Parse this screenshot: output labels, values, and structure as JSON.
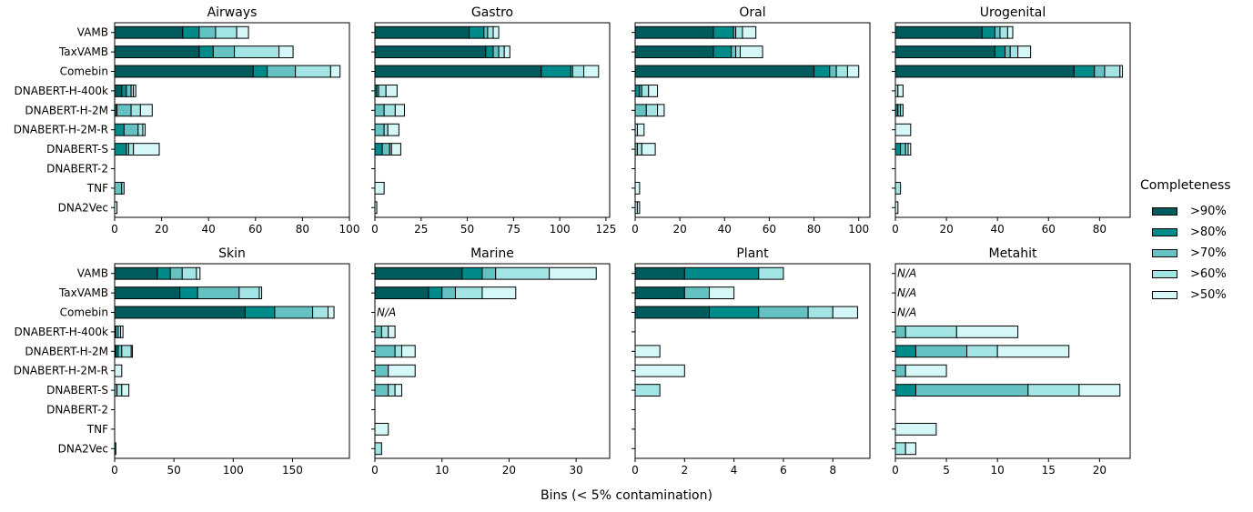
{
  "chart_data": {
    "type": "bar",
    "orientation": "horizontal",
    "stacked": true,
    "xlabel": "Bins (< 5% contamination)",
    "legend": {
      "title": "Completeness",
      "placement": "right",
      "entries": [
        ">90%",
        ">80%",
        ">70%",
        ">60%",
        ">50%"
      ],
      "colors": [
        "#005c5c",
        "#008b8b",
        "#66c2c2",
        "#a3e4e4",
        "#d6f7f7"
      ]
    },
    "categories": [
      "VAMB",
      "TaxVAMB",
      "Comebin",
      "DNABERT-H-400k",
      "DNABERT-H-2M",
      "DNABERT-H-2M-R",
      "DNABERT-S",
      "DNABERT-2",
      "TNF",
      "DNA2Vec"
    ],
    "panels": [
      {
        "title": "Airways",
        "xlim": [
          0,
          100
        ],
        "xticks": [
          0,
          20,
          40,
          60,
          80,
          100
        ],
        "na": [],
        "stacks": [
          [
            29,
            7,
            7,
            9,
            5
          ],
          [
            36,
            6,
            9,
            19,
            6
          ],
          [
            59,
            6,
            12,
            15,
            4
          ],
          [
            3,
            2,
            2,
            1,
            1
          ],
          [
            1,
            0,
            6,
            4,
            5
          ],
          [
            0,
            4,
            6,
            2,
            1
          ],
          [
            0,
            5,
            1,
            2,
            11
          ],
          [
            0,
            0,
            0,
            0,
            0
          ],
          [
            0,
            0,
            3,
            1,
            0
          ],
          [
            0,
            0,
            0,
            0,
            1
          ]
        ]
      },
      {
        "title": "Gastro",
        "xlim": [
          0,
          127
        ],
        "xticks": [
          0,
          25,
          50,
          75,
          100,
          125
        ],
        "na": [],
        "stacks": [
          [
            51,
            8,
            2,
            3,
            3
          ],
          [
            60,
            4,
            3,
            3,
            3
          ],
          [
            90,
            16,
            1,
            6,
            8
          ],
          [
            0,
            1,
            1,
            4,
            6
          ],
          [
            0,
            0,
            5,
            6,
            5
          ],
          [
            0,
            0,
            5,
            2,
            6
          ],
          [
            0,
            4,
            4,
            1,
            5
          ],
          [
            0,
            0,
            0,
            0,
            0
          ],
          [
            0,
            0,
            0,
            0,
            5
          ],
          [
            0,
            0,
            0,
            0,
            1
          ]
        ]
      },
      {
        "title": "Oral",
        "xlim": [
          0,
          105
        ],
        "xticks": [
          0,
          20,
          40,
          60,
          80,
          100
        ],
        "na": [],
        "stacks": [
          [
            35,
            9,
            1,
            3,
            6
          ],
          [
            35,
            8,
            2,
            2,
            10
          ],
          [
            80,
            7,
            3,
            5,
            5
          ],
          [
            0,
            2,
            1,
            3,
            4
          ],
          [
            0,
            0,
            5,
            5,
            3
          ],
          [
            0,
            0,
            0,
            1,
            3
          ],
          [
            0,
            0,
            1,
            2,
            6
          ],
          [
            0,
            0,
            0,
            0,
            0
          ],
          [
            0,
            0,
            0,
            0,
            2
          ],
          [
            0,
            0,
            0,
            1,
            1
          ]
        ]
      },
      {
        "title": "Urogenital",
        "xlim": [
          0,
          92
        ],
        "xticks": [
          0,
          20,
          40,
          60,
          80
        ],
        "na": [],
        "stacks": [
          [
            34,
            5,
            2,
            3,
            2
          ],
          [
            39,
            4,
            2,
            3,
            5
          ],
          [
            70,
            8,
            4,
            6,
            1
          ],
          [
            0,
            0,
            0,
            1,
            2
          ],
          [
            0,
            1,
            1,
            1,
            0
          ],
          [
            0,
            0,
            0,
            0,
            6
          ],
          [
            0,
            2,
            2,
            1,
            1
          ],
          [
            0,
            0,
            0,
            0,
            0
          ],
          [
            0,
            0,
            0,
            2,
            0
          ],
          [
            0,
            0,
            0,
            0,
            1
          ]
        ]
      },
      {
        "title": "Skin",
        "xlim": [
          0,
          198
        ],
        "xticks": [
          0,
          50,
          100,
          150
        ],
        "na": [],
        "stacks": [
          [
            36,
            11,
            10,
            12,
            3
          ],
          [
            55,
            15,
            35,
            17,
            2
          ],
          [
            110,
            25,
            32,
            13,
            5
          ],
          [
            1,
            0,
            2,
            2,
            2
          ],
          [
            1,
            2,
            3,
            8,
            1
          ],
          [
            0,
            0,
            0,
            0,
            6
          ],
          [
            0,
            0,
            2,
            4,
            6
          ],
          [
            0,
            0,
            0,
            0,
            0
          ],
          [
            0,
            0,
            0,
            0,
            0
          ],
          [
            0,
            1,
            0,
            0,
            0
          ]
        ]
      },
      {
        "title": "Marine",
        "xlim": [
          0,
          35
        ],
        "xticks": [
          0,
          10,
          20,
          30
        ],
        "na": [
          "Comebin"
        ],
        "stacks": [
          [
            13,
            3,
            2,
            8,
            7
          ],
          [
            8,
            2,
            2,
            4,
            5
          ],
          [
            0,
            0,
            0,
            0,
            0
          ],
          [
            0,
            0,
            1,
            1,
            1
          ],
          [
            0,
            0,
            3,
            1,
            2
          ],
          [
            0,
            0,
            2,
            0,
            4
          ],
          [
            0,
            0,
            2,
            1,
            1
          ],
          [
            0,
            0,
            0,
            0,
            0
          ],
          [
            0,
            0,
            0,
            0,
            2
          ],
          [
            0,
            0,
            0,
            1,
            0
          ]
        ]
      },
      {
        "title": "Plant",
        "xlim": [
          0,
          9.5
        ],
        "xticks": [
          0,
          2,
          4,
          6,
          8
        ],
        "na": [],
        "stacks": [
          [
            2,
            3,
            0,
            1,
            0
          ],
          [
            2,
            0,
            1,
            0,
            1
          ],
          [
            3,
            2,
            2,
            1,
            1
          ],
          [
            0,
            0,
            0,
            0,
            0
          ],
          [
            0,
            0,
            0,
            0,
            1
          ],
          [
            0,
            0,
            0,
            0,
            2
          ],
          [
            0,
            0,
            0,
            1,
            0
          ],
          [
            0,
            0,
            0,
            0,
            0
          ],
          [
            0,
            0,
            0,
            0,
            0
          ],
          [
            0,
            0,
            0,
            0,
            0
          ]
        ]
      },
      {
        "title": "Metahit",
        "xlim": [
          0,
          23
        ],
        "xticks": [
          0,
          5,
          10,
          15,
          20
        ],
        "na": [
          "VAMB",
          "TaxVAMB",
          "Comebin"
        ],
        "stacks": [
          [
            0,
            0,
            0,
            0,
            0
          ],
          [
            0,
            0,
            0,
            0,
            0
          ],
          [
            0,
            0,
            0,
            0,
            0
          ],
          [
            0,
            0,
            1,
            5,
            6
          ],
          [
            0,
            2,
            5,
            3,
            7
          ],
          [
            0,
            0,
            1,
            0,
            4
          ],
          [
            0,
            2,
            11,
            5,
            4
          ],
          [
            0,
            0,
            0,
            0,
            0
          ],
          [
            0,
            0,
            0,
            0,
            4
          ],
          [
            0,
            0,
            0,
            1,
            1
          ]
        ]
      }
    ]
  }
}
